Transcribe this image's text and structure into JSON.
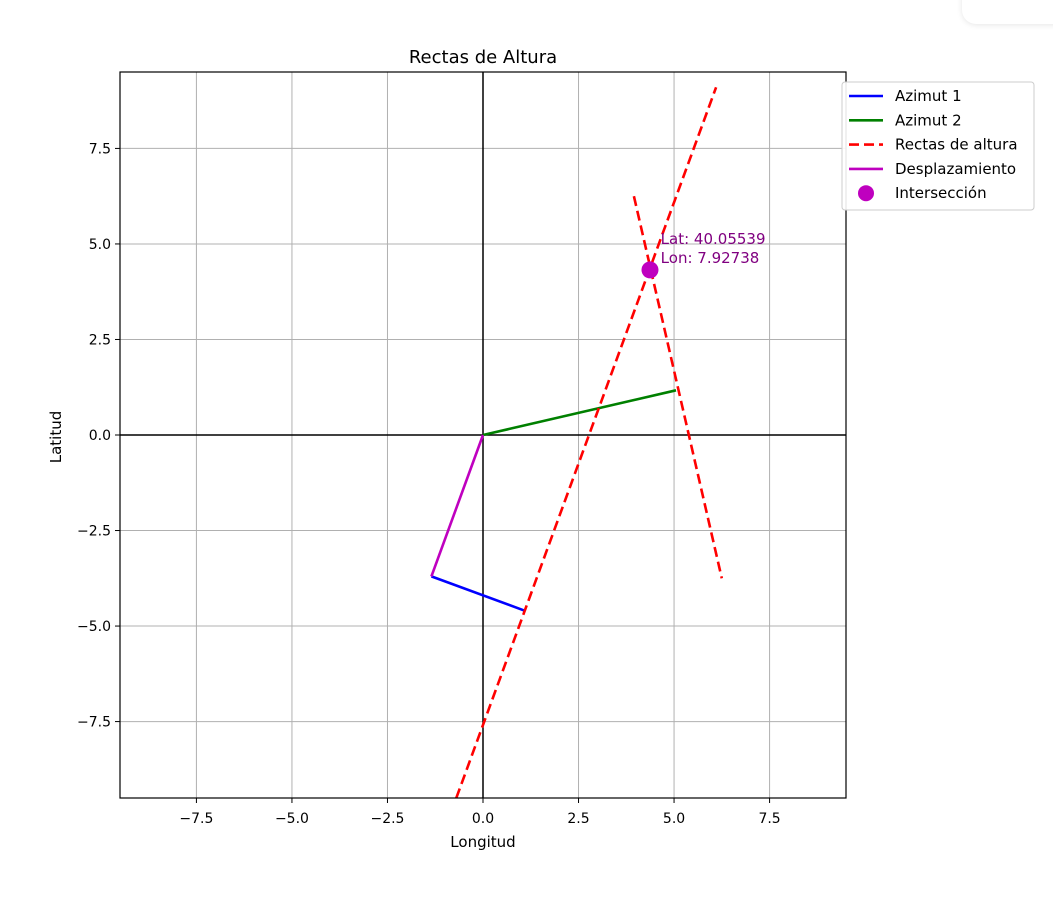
{
  "chart_data": {
    "type": "line",
    "title": "Rectas de Altura",
    "xlabel": "Longitud",
    "ylabel": "Latitud",
    "xlim": [
      -9.5,
      9.5
    ],
    "ylim": [
      -9.5,
      9.5
    ],
    "x_ticks": [
      -7.5,
      -5.0,
      -2.5,
      0.0,
      2.5,
      5.0,
      7.5
    ],
    "y_ticks": [
      -7.5,
      -5.0,
      -2.5,
      0.0,
      2.5,
      5.0,
      7.5
    ],
    "x_tick_labels": [
      "−7.5",
      "−5.0",
      "−2.5",
      "0.0",
      "2.5",
      "5.0",
      "7.5"
    ],
    "y_tick_labels": [
      "−7.5",
      "−5.0",
      "−2.5",
      "0.0",
      "2.5",
      "5.0",
      "7.5"
    ],
    "grid": true,
    "legend_position": "upper-right-outside",
    "series": [
      {
        "name": "Azimut 1",
        "style": "solid",
        "color": "#0000ff",
        "x": [
          -1.35,
          1.1
        ],
        "y": [
          -3.7,
          -4.6
        ]
      },
      {
        "name": "Azimut 2",
        "style": "solid",
        "color": "#008000",
        "x": [
          0.0,
          5.05
        ],
        "y": [
          0.0,
          1.17
        ]
      },
      {
        "name": "Rectas de altura",
        "style": "dashed",
        "color": "#ff0000",
        "x": [
          -0.7,
          6.1
        ],
        "y": [
          -9.5,
          9.1
        ]
      },
      {
        "name": "Rectas de altura (2)",
        "style": "dashed",
        "color": "#ff0000",
        "legend": false,
        "x": [
          3.95,
          6.25
        ],
        "y": [
          6.25,
          -3.75
        ]
      },
      {
        "name": "Desplazamiento",
        "style": "solid",
        "color": "#bf00bf",
        "x": [
          0.0,
          -1.35
        ],
        "y": [
          0.0,
          -3.7
        ]
      }
    ],
    "points": [
      {
        "name": "Intersección",
        "color": "#bf00bf",
        "x": 4.37,
        "y": 4.32
      }
    ],
    "annotation": {
      "line1": "Lat: 40.05539",
      "line2": "Lon: 7.92738",
      "color": "#800080",
      "x": 4.65,
      "y": 5.0
    },
    "legend": [
      {
        "label": "Azimut 1",
        "kind": "line",
        "color": "#0000ff"
      },
      {
        "label": "Azimut 2",
        "kind": "line",
        "color": "#008000"
      },
      {
        "label": "Rectas de altura",
        "kind": "dashed",
        "color": "#ff0000"
      },
      {
        "label": "Desplazamiento",
        "kind": "line",
        "color": "#bf00bf"
      },
      {
        "label": "Intersección",
        "kind": "marker",
        "color": "#bf00bf"
      }
    ]
  }
}
